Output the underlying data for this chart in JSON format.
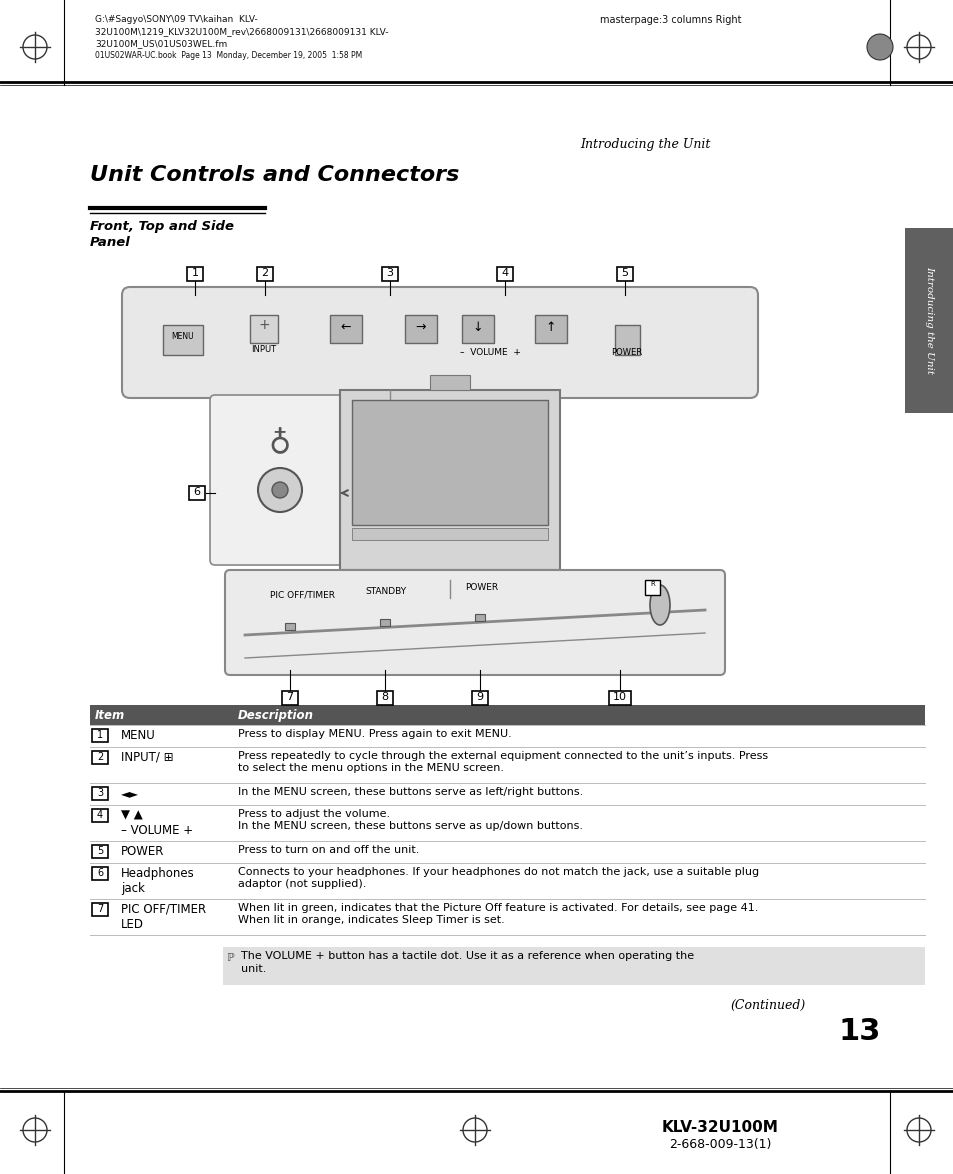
{
  "page_header_left1": "G:\\#Sagyo\\SONY\\09 TV\\kaihan  KLV-",
  "page_header_left2": "32U100M\\1219_KLV32U100M_rev\\2668009131\\2668009131 KLV-",
  "page_header_left3": "32U100M_US\\01US03WEL.fm",
  "page_header_left4": "01US02WAR-UC.book  Page 13  Monday, December 19, 2005  1:58 PM",
  "page_header_right": "masterpage:3 columns Right",
  "intro_label": "Introducing the Unit",
  "main_title": "Unit Controls and Connectors",
  "sub_title": "Front, Top and Side\nPanel",
  "side_label": "Introducing the Unit",
  "table_header_item": "Item",
  "table_header_desc": "Description",
  "note_text_line1": "The VOLUME + button has a tactile dot. Use it as a reference when operating the",
  "note_text_line2": "unit.",
  "continued_text": "(Continued)",
  "page_number": "13",
  "footer_model": "KLV-32U100M",
  "footer_code": "2-668-009-13(1)",
  "bg_color": "#ffffff",
  "table_header_bg": "#555555",
  "table_header_fg": "#ffffff",
  "note_bg": "#e0e0e0",
  "side_bar_color": "#606060"
}
